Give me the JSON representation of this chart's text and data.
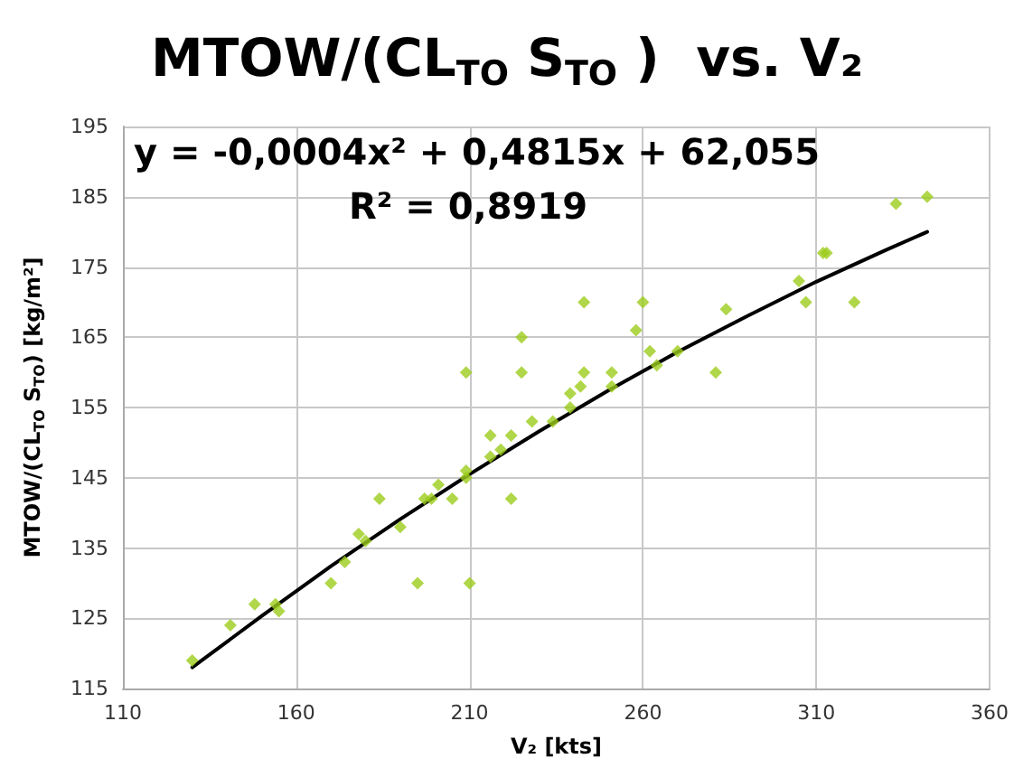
{
  "chart_data": {
    "type": "scatter",
    "title": "MTOW/(CL$_{TO}$ S$_{TO}$ )  vs. V₂",
    "xlabel": "V₂ [kts]",
    "ylabel": "MTOW/(CL$_{TO}$ S$_{TO}$) [kg/m²]",
    "annotations": [
      "y = -0,0004x² + 0,4815x + 62,055",
      "R² = 0,8919"
    ],
    "series": [
      {
        "color": "#9ccc1c",
        "marker": "diamond",
        "x": [
          130,
          141,
          148,
          154,
          155,
          170,
          174,
          178,
          180,
          184,
          190,
          195,
          197,
          199,
          201,
          205,
          209,
          209,
          209,
          210,
          216,
          216,
          219,
          222,
          222,
          225,
          225,
          228,
          234,
          239,
          239,
          242,
          243,
          243,
          251,
          251,
          258,
          260,
          262,
          264,
          270,
          281,
          284,
          305,
          307,
          312,
          313,
          321,
          333,
          342
        ],
        "values": [
          119,
          124,
          127,
          127,
          126,
          130,
          133,
          137,
          136,
          142,
          138,
          130,
          142,
          142,
          144,
          142,
          146,
          145,
          160,
          130,
          148,
          151,
          149,
          142,
          151,
          160,
          165,
          153,
          153,
          155,
          157,
          158,
          160,
          170,
          160,
          158,
          166,
          170,
          163,
          161,
          163,
          160,
          169,
          173,
          170,
          177,
          177,
          170,
          184,
          185
        ]
      },
      {
        "type": "line",
        "color": "#000000",
        "marker": "none",
        "x": [
          130,
          150,
          170,
          190,
          210,
          230,
          250,
          270,
          290,
          310,
          330,
          342
        ],
        "values": [
          118,
          125.3,
          132.4,
          139.1,
          145.5,
          151.6,
          157.4,
          162.9,
          168,
          172.9,
          177.4,
          180
        ]
      }
    ],
    "xlim": [
      110,
      360
    ],
    "xticks": [
      110,
      160,
      210,
      260,
      310,
      360
    ],
    "ylim": [
      115,
      195
    ],
    "yticks": [
      115,
      125,
      135,
      145,
      155,
      165,
      175,
      185,
      195
    ],
    "grid": true
  }
}
